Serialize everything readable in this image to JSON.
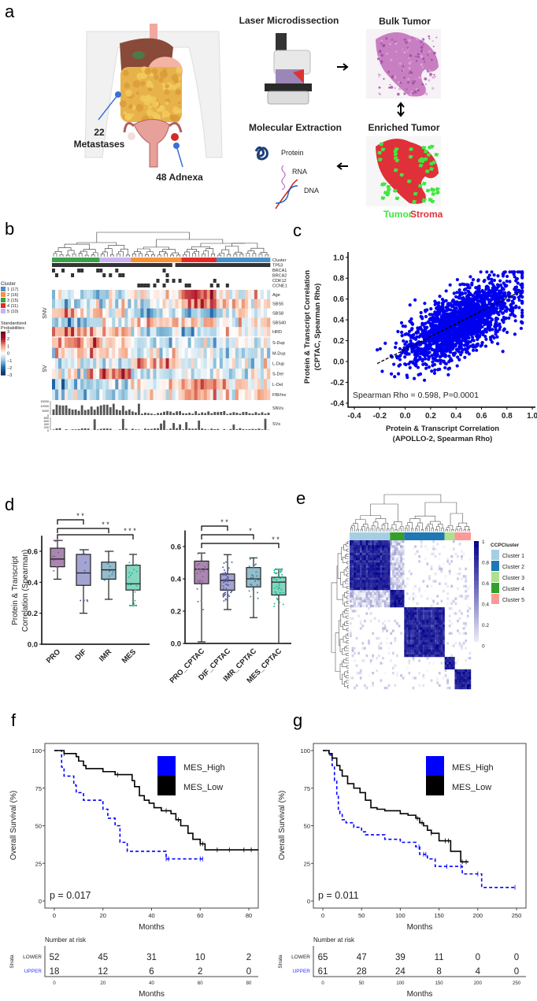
{
  "panel_labels": {
    "a": "a",
    "b": "b",
    "c": "c",
    "d": "d",
    "e": "e",
    "f": "f",
    "g": "g"
  },
  "panel_a": {
    "metastases_count": "22",
    "metastases_label": "Metastases",
    "adnexa_label": "48 Adnexa",
    "laser_title": "Laser Microdissection",
    "bulk_title": "Bulk Tumor",
    "molecular_title": "Molecular Extraction",
    "enriched_title": "Enriched Tumor",
    "protein": "Protein",
    "rna": "RNA",
    "dna": "DNA",
    "tumor": "Tumor",
    "stroma": "Stroma",
    "colors": {
      "tumor": "#3ee83e",
      "stroma": "#e0303a"
    }
  },
  "chart_data": [
    {
      "panel": "b",
      "type": "heatmap",
      "annotation_rows": [
        "Cluster",
        "TP53",
        "BRCA1",
        "BRCA2",
        "CDK12",
        "CCNE1"
      ],
      "cluster_order": [
        3,
        5,
        2,
        4,
        1
      ],
      "cluster_sizes": {
        "1": 17,
        "2": 16,
        "3": 15,
        "4": 11,
        "5": 10
      },
      "mutations": {
        "TP53_wildtype_columns": [
          38
        ],
        "BRCA1": [
          0,
          3,
          8,
          9,
          14,
          15,
          20,
          35
        ],
        "BRCA2": [
          1,
          6,
          16,
          18,
          21,
          22,
          36
        ],
        "CDK12": [
          33,
          36,
          38,
          40,
          51
        ],
        "CCNE1": [
          27,
          28,
          29,
          30,
          32,
          35,
          42,
          43,
          50,
          52,
          55
        ]
      },
      "groups": [
        {
          "label": "SNV",
          "rows": [
            "Age",
            "SBS5",
            "SBS8",
            "SBS40",
            "HRD"
          ]
        },
        {
          "label": "SV",
          "rows": [
            "S-Dup",
            "M-Dup",
            "L-Dup",
            "S-Del",
            "L-Del",
            "FBI/Inv"
          ]
        }
      ],
      "cluster_mean_approx": {
        "Age": [
          -0.5,
          -0.5,
          0.3,
          1.8,
          0.0
        ],
        "SBS5": [
          -0.5,
          -0.6,
          0.0,
          1.3,
          0.2
        ],
        "SBS8": [
          0.6,
          0.3,
          -0.7,
          -1.0,
          0.0
        ],
        "SBS40": [
          -0.7,
          -0.6,
          0.6,
          0.7,
          0.1
        ],
        "HRD": [
          0.8,
          0.7,
          -0.6,
          -1.0,
          -0.1
        ],
        "S-Dup": [
          1.2,
          0.4,
          -0.5,
          -0.5,
          -0.4
        ],
        "M-Dup": [
          0.5,
          0.5,
          -0.1,
          -0.2,
          -0.5
        ],
        "L-Dup": [
          -0.4,
          -0.5,
          1.0,
          -0.3,
          -0.3
        ],
        "S-Del": [
          0.1,
          1.2,
          -0.6,
          -0.3,
          -0.2
        ],
        "L-Del": [
          -0.7,
          -0.4,
          0.2,
          0.8,
          0.3
        ],
        "FBI/Inv": [
          -0.7,
          -0.6,
          -0.1,
          0.9,
          0.4
        ]
      },
      "legend": {
        "title": "Cluster",
        "items": [
          {
            "label": "1 (17)",
            "color": "#4a90c8"
          },
          {
            "label": "2 (16)",
            "color": "#f7923a"
          },
          {
            "label": "3 (15)",
            "color": "#3aa14a"
          },
          {
            "label": "4 (11)",
            "color": "#e52a26"
          },
          {
            "label": "5 (10)",
            "color": "#c9b3f0"
          }
        ],
        "colorbar_title": [
          "Standardized",
          "Probabilities"
        ],
        "colorbar_ticks": [
          "3",
          "2",
          "1",
          "0",
          "−1",
          "−2",
          "−3"
        ]
      },
      "tracks": [
        {
          "label": "SNVs",
          "ticks": [
            "15000",
            "10000",
            "5000",
            "0"
          ]
        },
        {
          "label": "SVs",
          "ticks": [
            "800",
            "600",
            "400",
            "200",
            "0"
          ]
        }
      ]
    },
    {
      "panel": "c",
      "type": "scatter",
      "xlabel": [
        "Protein & Transcript Correlation",
        "(APOLLO-2, Spearman Rho)"
      ],
      "ylabel": [
        "Protein & Transcript Correlation",
        "(CPTAC, Spearman Rho)"
      ],
      "xlim": [
        -0.4,
        1.0
      ],
      "ylim": [
        -0.4,
        1.0
      ],
      "xticks": [
        "-0.4",
        "-0.2",
        "0.0",
        "0.2",
        "0.4",
        "0.6",
        "0.8",
        "1.0"
      ],
      "yticks": [
        "-0.4",
        "-0.2",
        "0.0",
        "0.2",
        "0.4",
        "0.6",
        "0.8",
        "1.0"
      ],
      "point_color": "#0000ee",
      "x_mean": 0.45,
      "x_sd": 0.22,
      "x_range": [
        -0.22,
        0.92
      ],
      "y_range": [
        -0.25,
        0.86
      ],
      "fit_line": {
        "x": [
          -0.22,
          0.9
        ],
        "y": [
          -0.02,
          0.67
        ]
      },
      "annotation": "Spearman Rho = 0.598, P=0.0001"
    },
    {
      "panel": "d",
      "type": "box",
      "ylabel": [
        "Protein &  Transcript",
        "Correlation (Spearman)"
      ],
      "yticks": [
        "0.0",
        "0.2",
        "0.4",
        "0.6"
      ],
      "plots": [
        {
          "groups": [
            {
              "label": "PRO",
              "min": 0.42,
              "q1": 0.5,
              "median": 0.55,
              "q3": 0.62,
              "max": 0.67,
              "color": "#8e5c95",
              "fill": "#a987b0",
              "n": 10
            },
            {
              "label": "DIF",
              "min": 0.2,
              "q1": 0.38,
              "median": 0.46,
              "q3": 0.58,
              "max": 0.61,
              "color": "#5b5ea6",
              "fill": "#a3a4d2",
              "n": 9
            },
            {
              "label": "IMR",
              "min": 0.29,
              "q1": 0.42,
              "median": 0.48,
              "q3": 0.53,
              "max": 0.6,
              "color": "#3f86a0",
              "fill": "#95bccb",
              "n": 10
            },
            {
              "label": "MES",
              "min": 0.25,
              "q1": 0.35,
              "median": 0.39,
              "q3": 0.51,
              "max": 0.58,
              "color": "#1fbf98",
              "fill": "#86d6c1",
              "n": 22
            }
          ],
          "brackets": [
            {
              "to": "DIF",
              "stars": "* *"
            },
            {
              "to": "IMR",
              "stars": "* *"
            },
            {
              "to": "MES",
              "stars": "* * *"
            }
          ]
        },
        {
          "groups": [
            {
              "label": "PRO_CPTAC",
              "min": 0.01,
              "q1": 0.37,
              "median": 0.46,
              "q3": 0.51,
              "max": 0.56,
              "color": "#8e5c95",
              "fill": "#a987b0",
              "n": 22
            },
            {
              "label": "DIF_CPTAC",
              "min": 0.21,
              "q1": 0.33,
              "median": 0.39,
              "q3": 0.43,
              "max": 0.55,
              "color": "#5b5ea6",
              "fill": "#a3a4d2",
              "n": 50
            },
            {
              "label": "IMR_CPTAC",
              "min": 0.16,
              "q1": 0.35,
              "median": 0.4,
              "q3": 0.47,
              "max": 0.53,
              "color": "#3f86a0",
              "fill": "#95bccb",
              "n": 25
            },
            {
              "label": "MES_CPTAC",
              "min": 0.0,
              "q1": 0.3,
              "median": 0.38,
              "q3": 0.41,
              "max": 0.46,
              "color": "#1fbf98",
              "fill": "#86d6c1",
              "n": 40
            }
          ],
          "brackets": [
            {
              "to": "DIF_CPTAC",
              "stars": "* *"
            },
            {
              "to": "IMR_CPTAC",
              "stars": "*"
            },
            {
              "to": "MES_CPTAC",
              "stars": "* *"
            }
          ]
        }
      ]
    },
    {
      "panel": "e",
      "type": "heatmap",
      "legend_title": "CCPCluster",
      "clusters": [
        {
          "label": "Cluster 1",
          "color": "#a6cee3",
          "size": 20
        },
        {
          "label": "Cluster 2",
          "color": "#1f78b4",
          "size": 20
        },
        {
          "label": "Cluster 3",
          "color": "#b2df8a",
          "size": 5
        },
        {
          "label": "Cluster 4",
          "color": "#33a02c",
          "size": 7
        },
        {
          "label": "Cluster 5",
          "color": "#fb9a99",
          "size": 8
        }
      ],
      "column_order": [
        1,
        4,
        2,
        3,
        5
      ],
      "colorbar_ticks": [
        "1",
        "0.8",
        "0.6",
        "0.4",
        "0.2",
        "0"
      ],
      "colorbar_color": "#00008b"
    },
    {
      "panel": "f",
      "type": "line",
      "ylabel": "Overall Survival (%)",
      "xlabel": "Months",
      "xticks": [
        0,
        20,
        40,
        60,
        80
      ],
      "yticks": [
        0,
        25,
        50,
        75,
        100
      ],
      "xlim": [
        0,
        84
      ],
      "pvalue": "p = 0.017",
      "series": [
        {
          "name": "MES_High",
          "color": "#0000ff",
          "dashed": true,
          "t": [
            0,
            3,
            4,
            8,
            9,
            12,
            13,
            20,
            22,
            25,
            27,
            30,
            31,
            46,
            62
          ],
          "s": [
            100,
            89,
            83,
            77,
            72,
            67,
            67,
            61,
            55,
            50,
            39,
            33,
            33,
            28,
            28
          ],
          "censor": [
            46,
            47,
            60,
            61
          ]
        },
        {
          "name": "MES_Low",
          "color": "#000000",
          "dashed": false,
          "t": [
            0,
            4,
            9,
            10,
            12,
            13,
            20,
            25,
            32,
            33,
            35,
            37,
            39,
            41,
            44,
            48,
            50,
            52,
            55,
            57,
            60,
            62,
            84
          ],
          "s": [
            100,
            98,
            96,
            93,
            90,
            88,
            86,
            84,
            80,
            76,
            70,
            67,
            65,
            62,
            60,
            58,
            54,
            50,
            45,
            41,
            38,
            34,
            34
          ],
          "censor": [
            4,
            26,
            46,
            51,
            60,
            61,
            67,
            72,
            78,
            81
          ]
        }
      ],
      "risk_table": {
        "title": "Number at risk",
        "strata_label": "Strata",
        "xlabel": "Months",
        "rows": [
          {
            "name": "LOWER",
            "values": [
              "52",
              "45",
              "31",
              "10",
              "2"
            ],
            "color": "#222222"
          },
          {
            "name": "UPPER",
            "values": [
              "18",
              "12",
              "6",
              "2",
              "0"
            ],
            "color": "#3333ff"
          }
        ]
      }
    },
    {
      "panel": "g",
      "type": "line",
      "ylabel": "Overall Survival (%)",
      "xlabel": "Months",
      "xticks": [
        0,
        50,
        100,
        150,
        200,
        250
      ],
      "yticks": [
        0,
        25,
        50,
        75,
        100
      ],
      "xlim": [
        -4,
        262
      ],
      "pvalue": "p = 0.011",
      "series": [
        {
          "name": "MES_High",
          "color": "#0000ff",
          "dashed": true,
          "t": [
            0,
            8,
            12,
            15,
            18,
            20,
            22,
            25,
            30,
            40,
            50,
            55,
            80,
            100,
            120,
            125,
            135,
            145,
            180,
            205,
            248
          ],
          "s": [
            100,
            97,
            90,
            80,
            70,
            61,
            58,
            54,
            52,
            49,
            46,
            44,
            41,
            39,
            36,
            31,
            28,
            23,
            18,
            9,
            9
          ],
          "censor": [
            124,
            130,
            133,
            160,
            178,
            200,
            248
          ]
        },
        {
          "name": "MES_Low",
          "color": "#000000",
          "dashed": false,
          "t": [
            0,
            8,
            12,
            18,
            22,
            25,
            32,
            40,
            48,
            55,
            62,
            70,
            80,
            100,
            110,
            120,
            125,
            130,
            135,
            140,
            150,
            165,
            178,
            188
          ],
          "s": [
            100,
            98,
            95,
            90,
            87,
            83,
            78,
            75,
            72,
            67,
            62,
            61,
            60,
            58,
            57,
            55,
            52,
            50,
            47,
            45,
            40,
            33,
            26,
            26
          ],
          "censor": [
            122,
            128,
            140,
            158,
            162,
            180,
            185
          ]
        }
      ],
      "risk_table": {
        "title": "Number at risk",
        "strata_label": "Strata",
        "xlabel": "Months",
        "rows": [
          {
            "name": "LOWER",
            "values": [
              "65",
              "47",
              "39",
              "11",
              "0",
              "0"
            ],
            "color": "#222222"
          },
          {
            "name": "UPPER",
            "values": [
              "61",
              "28",
              "24",
              "8",
              "4",
              "0"
            ],
            "color": "#3333ff"
          }
        ]
      }
    }
  ]
}
